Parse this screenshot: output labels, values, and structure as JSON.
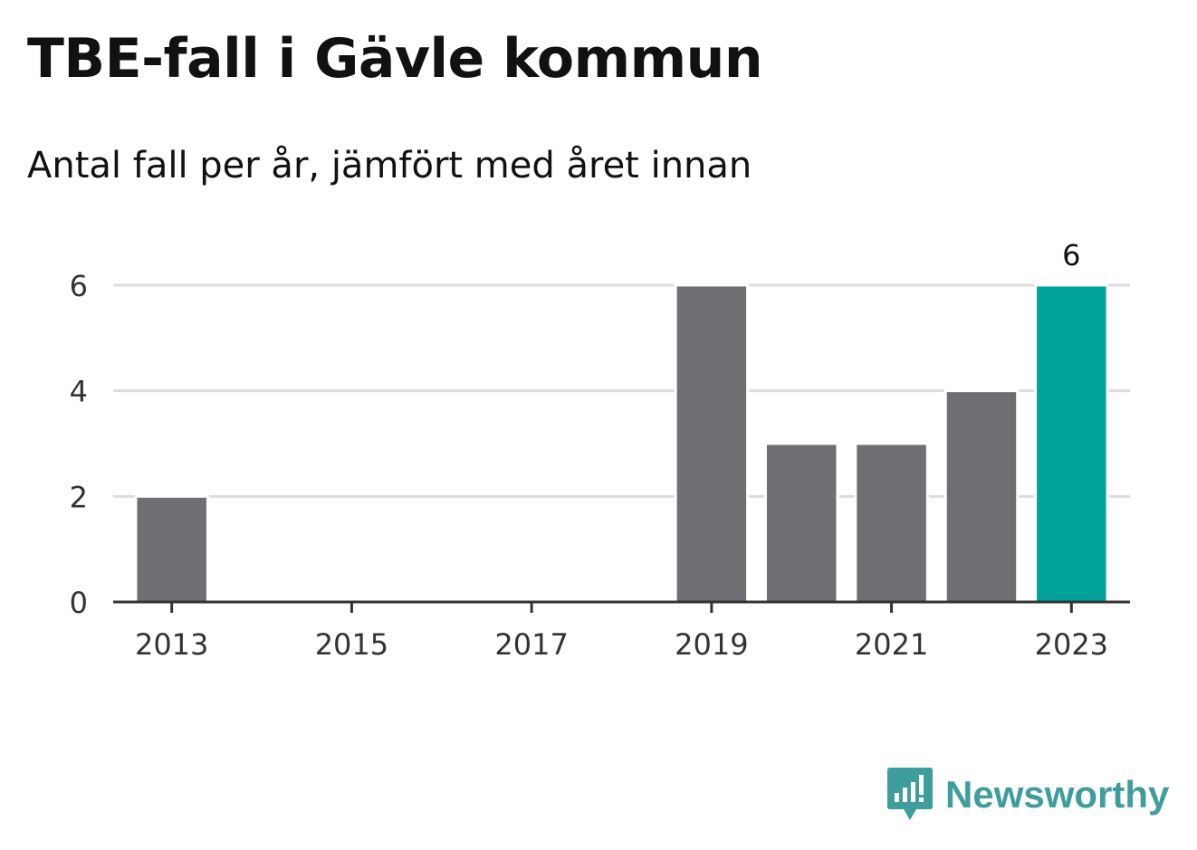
{
  "title": "TBE-fall i Gävle kommun",
  "subtitle": "Antal fall per år, jämfört med året innan",
  "brand": {
    "name": "Newsworthy",
    "icon": "newsworthy-logo-icon",
    "color": "#3f9e9b"
  },
  "colors": {
    "bar": "#6e6e73",
    "highlight": "#00a39a",
    "grid": "#dddddd",
    "axis": "#333333"
  },
  "chart_data": {
    "type": "bar",
    "title": "TBE-fall i Gävle kommun",
    "subtitle": "Antal fall per år, jämfört med året innan",
    "xlabel": "",
    "ylabel": "",
    "categories": [
      2013,
      2014,
      2015,
      2016,
      2017,
      2018,
      2019,
      2020,
      2021,
      2022,
      2023
    ],
    "values": [
      2,
      0,
      0,
      0,
      0,
      0,
      6,
      3,
      3,
      4,
      6
    ],
    "highlight_category": 2023,
    "data_labels": [
      {
        "category": 2023,
        "text": "6"
      }
    ],
    "x_tick_labels": [
      "2013",
      "2015",
      "2017",
      "2019",
      "2021",
      "2023"
    ],
    "y_ticks": [
      0,
      2,
      4,
      6
    ],
    "ylim": [
      0,
      6
    ],
    "grid": true,
    "legend": "none"
  }
}
